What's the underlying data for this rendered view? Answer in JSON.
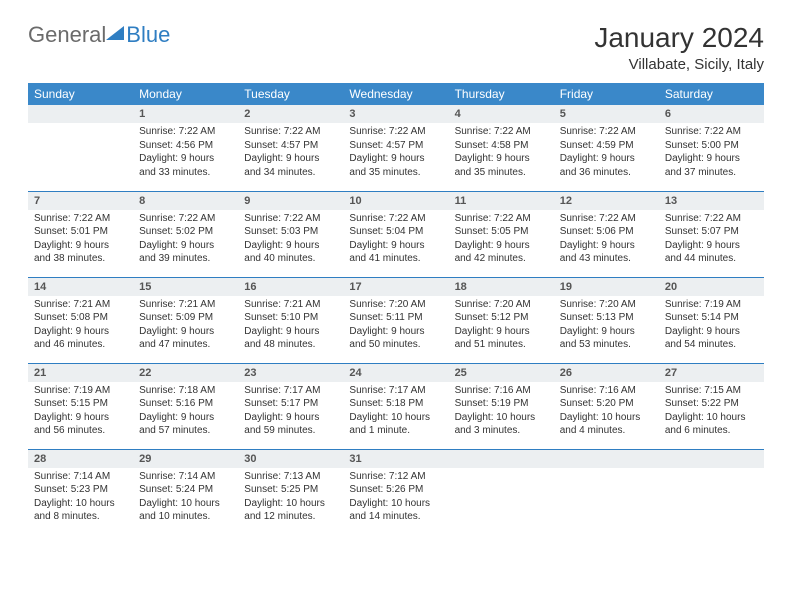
{
  "brand": {
    "part1": "General",
    "part2": "Blue"
  },
  "title": "January 2024",
  "location": "Villabate, Sicily, Italy",
  "colors": {
    "header_bg": "#3a88c9",
    "row_sep": "#2f7ec2",
    "daynum_bg": "#eceff1",
    "text": "#333333",
    "logo_gray": "#6b6b6b",
    "logo_blue": "#2f7ec2"
  },
  "weekdays": [
    "Sunday",
    "Monday",
    "Tuesday",
    "Wednesday",
    "Thursday",
    "Friday",
    "Saturday"
  ],
  "weeks": [
    [
      {
        "n": "",
        "sr": "",
        "ss": "",
        "dl1": "",
        "dl2": ""
      },
      {
        "n": "1",
        "sr": "Sunrise: 7:22 AM",
        "ss": "Sunset: 4:56 PM",
        "dl1": "Daylight: 9 hours",
        "dl2": "and 33 minutes."
      },
      {
        "n": "2",
        "sr": "Sunrise: 7:22 AM",
        "ss": "Sunset: 4:57 PM",
        "dl1": "Daylight: 9 hours",
        "dl2": "and 34 minutes."
      },
      {
        "n": "3",
        "sr": "Sunrise: 7:22 AM",
        "ss": "Sunset: 4:57 PM",
        "dl1": "Daylight: 9 hours",
        "dl2": "and 35 minutes."
      },
      {
        "n": "4",
        "sr": "Sunrise: 7:22 AM",
        "ss": "Sunset: 4:58 PM",
        "dl1": "Daylight: 9 hours",
        "dl2": "and 35 minutes."
      },
      {
        "n": "5",
        "sr": "Sunrise: 7:22 AM",
        "ss": "Sunset: 4:59 PM",
        "dl1": "Daylight: 9 hours",
        "dl2": "and 36 minutes."
      },
      {
        "n": "6",
        "sr": "Sunrise: 7:22 AM",
        "ss": "Sunset: 5:00 PM",
        "dl1": "Daylight: 9 hours",
        "dl2": "and 37 minutes."
      }
    ],
    [
      {
        "n": "7",
        "sr": "Sunrise: 7:22 AM",
        "ss": "Sunset: 5:01 PM",
        "dl1": "Daylight: 9 hours",
        "dl2": "and 38 minutes."
      },
      {
        "n": "8",
        "sr": "Sunrise: 7:22 AM",
        "ss": "Sunset: 5:02 PM",
        "dl1": "Daylight: 9 hours",
        "dl2": "and 39 minutes."
      },
      {
        "n": "9",
        "sr": "Sunrise: 7:22 AM",
        "ss": "Sunset: 5:03 PM",
        "dl1": "Daylight: 9 hours",
        "dl2": "and 40 minutes."
      },
      {
        "n": "10",
        "sr": "Sunrise: 7:22 AM",
        "ss": "Sunset: 5:04 PM",
        "dl1": "Daylight: 9 hours",
        "dl2": "and 41 minutes."
      },
      {
        "n": "11",
        "sr": "Sunrise: 7:22 AM",
        "ss": "Sunset: 5:05 PM",
        "dl1": "Daylight: 9 hours",
        "dl2": "and 42 minutes."
      },
      {
        "n": "12",
        "sr": "Sunrise: 7:22 AM",
        "ss": "Sunset: 5:06 PM",
        "dl1": "Daylight: 9 hours",
        "dl2": "and 43 minutes."
      },
      {
        "n": "13",
        "sr": "Sunrise: 7:22 AM",
        "ss": "Sunset: 5:07 PM",
        "dl1": "Daylight: 9 hours",
        "dl2": "and 44 minutes."
      }
    ],
    [
      {
        "n": "14",
        "sr": "Sunrise: 7:21 AM",
        "ss": "Sunset: 5:08 PM",
        "dl1": "Daylight: 9 hours",
        "dl2": "and 46 minutes."
      },
      {
        "n": "15",
        "sr": "Sunrise: 7:21 AM",
        "ss": "Sunset: 5:09 PM",
        "dl1": "Daylight: 9 hours",
        "dl2": "and 47 minutes."
      },
      {
        "n": "16",
        "sr": "Sunrise: 7:21 AM",
        "ss": "Sunset: 5:10 PM",
        "dl1": "Daylight: 9 hours",
        "dl2": "and 48 minutes."
      },
      {
        "n": "17",
        "sr": "Sunrise: 7:20 AM",
        "ss": "Sunset: 5:11 PM",
        "dl1": "Daylight: 9 hours",
        "dl2": "and 50 minutes."
      },
      {
        "n": "18",
        "sr": "Sunrise: 7:20 AM",
        "ss": "Sunset: 5:12 PM",
        "dl1": "Daylight: 9 hours",
        "dl2": "and 51 minutes."
      },
      {
        "n": "19",
        "sr": "Sunrise: 7:20 AM",
        "ss": "Sunset: 5:13 PM",
        "dl1": "Daylight: 9 hours",
        "dl2": "and 53 minutes."
      },
      {
        "n": "20",
        "sr": "Sunrise: 7:19 AM",
        "ss": "Sunset: 5:14 PM",
        "dl1": "Daylight: 9 hours",
        "dl2": "and 54 minutes."
      }
    ],
    [
      {
        "n": "21",
        "sr": "Sunrise: 7:19 AM",
        "ss": "Sunset: 5:15 PM",
        "dl1": "Daylight: 9 hours",
        "dl2": "and 56 minutes."
      },
      {
        "n": "22",
        "sr": "Sunrise: 7:18 AM",
        "ss": "Sunset: 5:16 PM",
        "dl1": "Daylight: 9 hours",
        "dl2": "and 57 minutes."
      },
      {
        "n": "23",
        "sr": "Sunrise: 7:17 AM",
        "ss": "Sunset: 5:17 PM",
        "dl1": "Daylight: 9 hours",
        "dl2": "and 59 minutes."
      },
      {
        "n": "24",
        "sr": "Sunrise: 7:17 AM",
        "ss": "Sunset: 5:18 PM",
        "dl1": "Daylight: 10 hours",
        "dl2": "and 1 minute."
      },
      {
        "n": "25",
        "sr": "Sunrise: 7:16 AM",
        "ss": "Sunset: 5:19 PM",
        "dl1": "Daylight: 10 hours",
        "dl2": "and 3 minutes."
      },
      {
        "n": "26",
        "sr": "Sunrise: 7:16 AM",
        "ss": "Sunset: 5:20 PM",
        "dl1": "Daylight: 10 hours",
        "dl2": "and 4 minutes."
      },
      {
        "n": "27",
        "sr": "Sunrise: 7:15 AM",
        "ss": "Sunset: 5:22 PM",
        "dl1": "Daylight: 10 hours",
        "dl2": "and 6 minutes."
      }
    ],
    [
      {
        "n": "28",
        "sr": "Sunrise: 7:14 AM",
        "ss": "Sunset: 5:23 PM",
        "dl1": "Daylight: 10 hours",
        "dl2": "and 8 minutes."
      },
      {
        "n": "29",
        "sr": "Sunrise: 7:14 AM",
        "ss": "Sunset: 5:24 PM",
        "dl1": "Daylight: 10 hours",
        "dl2": "and 10 minutes."
      },
      {
        "n": "30",
        "sr": "Sunrise: 7:13 AM",
        "ss": "Sunset: 5:25 PM",
        "dl1": "Daylight: 10 hours",
        "dl2": "and 12 minutes."
      },
      {
        "n": "31",
        "sr": "Sunrise: 7:12 AM",
        "ss": "Sunset: 5:26 PM",
        "dl1": "Daylight: 10 hours",
        "dl2": "and 14 minutes."
      },
      {
        "n": "",
        "sr": "",
        "ss": "",
        "dl1": "",
        "dl2": ""
      },
      {
        "n": "",
        "sr": "",
        "ss": "",
        "dl1": "",
        "dl2": ""
      },
      {
        "n": "",
        "sr": "",
        "ss": "",
        "dl1": "",
        "dl2": ""
      }
    ]
  ]
}
